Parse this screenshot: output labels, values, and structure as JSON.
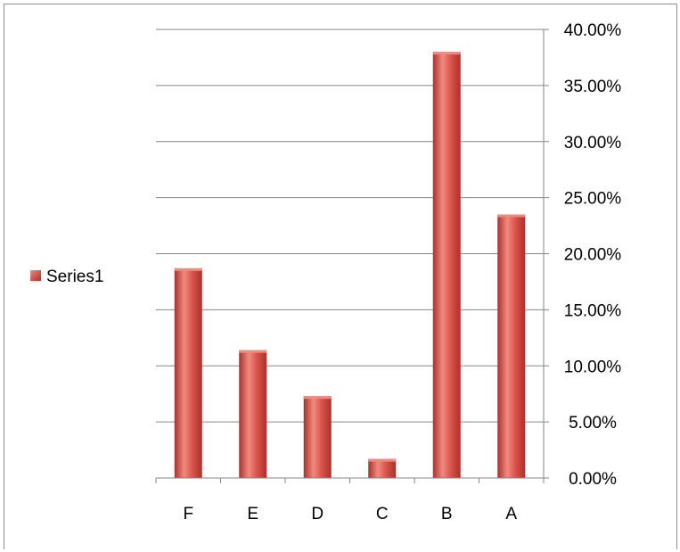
{
  "chart_data": {
    "type": "bar",
    "categories": [
      "F",
      "E",
      "D",
      "C",
      "B",
      "A"
    ],
    "series": [
      {
        "name": "Series1",
        "values": [
          0.187,
          0.114,
          0.073,
          0.017,
          0.38,
          0.235
        ]
      }
    ],
    "title": "",
    "xlabel": "",
    "ylabel": "",
    "ylim": [
      0,
      0.4
    ],
    "yticks": [
      0,
      0.05,
      0.1,
      0.15,
      0.2,
      0.25,
      0.3,
      0.35,
      0.4
    ],
    "ytick_labels": [
      "0.00%",
      "5.00%",
      "10.00%",
      "15.00%",
      "20.00%",
      "25.00%",
      "30.00%",
      "35.00%",
      "40.00%"
    ],
    "y_axis_side": "right",
    "grid": true,
    "legend_placement": "left",
    "colors": {
      "bar_fill": "#d9534a",
      "bar_highlight": "#f08a7f",
      "bar_shadow": "#a8322b",
      "gridline": "#868686",
      "axis": "#868686"
    }
  }
}
